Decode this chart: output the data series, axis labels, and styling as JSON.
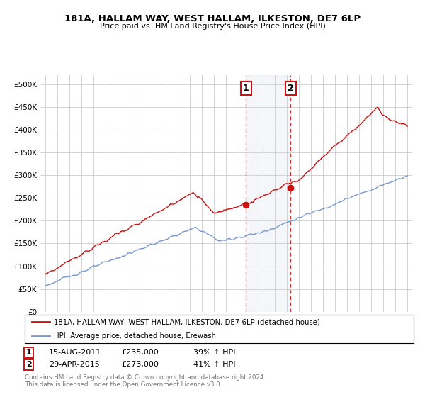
{
  "title1": "181A, HALLAM WAY, WEST HALLAM, ILKESTON, DE7 6LP",
  "title2": "Price paid vs. HM Land Registry's House Price Index (HPI)",
  "legend_line1": "181A, HALLAM WAY, WEST HALLAM, ILKESTON, DE7 6LP (detached house)",
  "legend_line2": "HPI: Average price, detached house, Erewash",
  "footnote1": "Contains HM Land Registry data © Crown copyright and database right 2024.",
  "footnote2": "This data is licensed under the Open Government Licence v3.0.",
  "ann1_label": "1",
  "ann1_date": "15-AUG-2011",
  "ann1_price": "£235,000",
  "ann1_pct": "39% ↑ HPI",
  "ann2_label": "2",
  "ann2_date": "29-APR-2015",
  "ann2_price": "£273,000",
  "ann2_pct": "41% ↑ HPI",
  "ylim": [
    0,
    520000
  ],
  "yticks": [
    0,
    50000,
    100000,
    150000,
    200000,
    250000,
    300000,
    350000,
    400000,
    450000,
    500000
  ],
  "ytick_labels": [
    "£0",
    "£50K",
    "£100K",
    "£150K",
    "£200K",
    "£250K",
    "£300K",
    "£350K",
    "£400K",
    "£450K",
    "£500K"
  ],
  "red_color": "#cc1111",
  "blue_color": "#7799cc",
  "purchase1_x": 2011.625,
  "purchase2_x": 2015.33,
  "purchase1_y": 235000,
  "purchase2_y": 273000,
  "xlim_left": 1994.6,
  "xlim_right": 2025.4
}
